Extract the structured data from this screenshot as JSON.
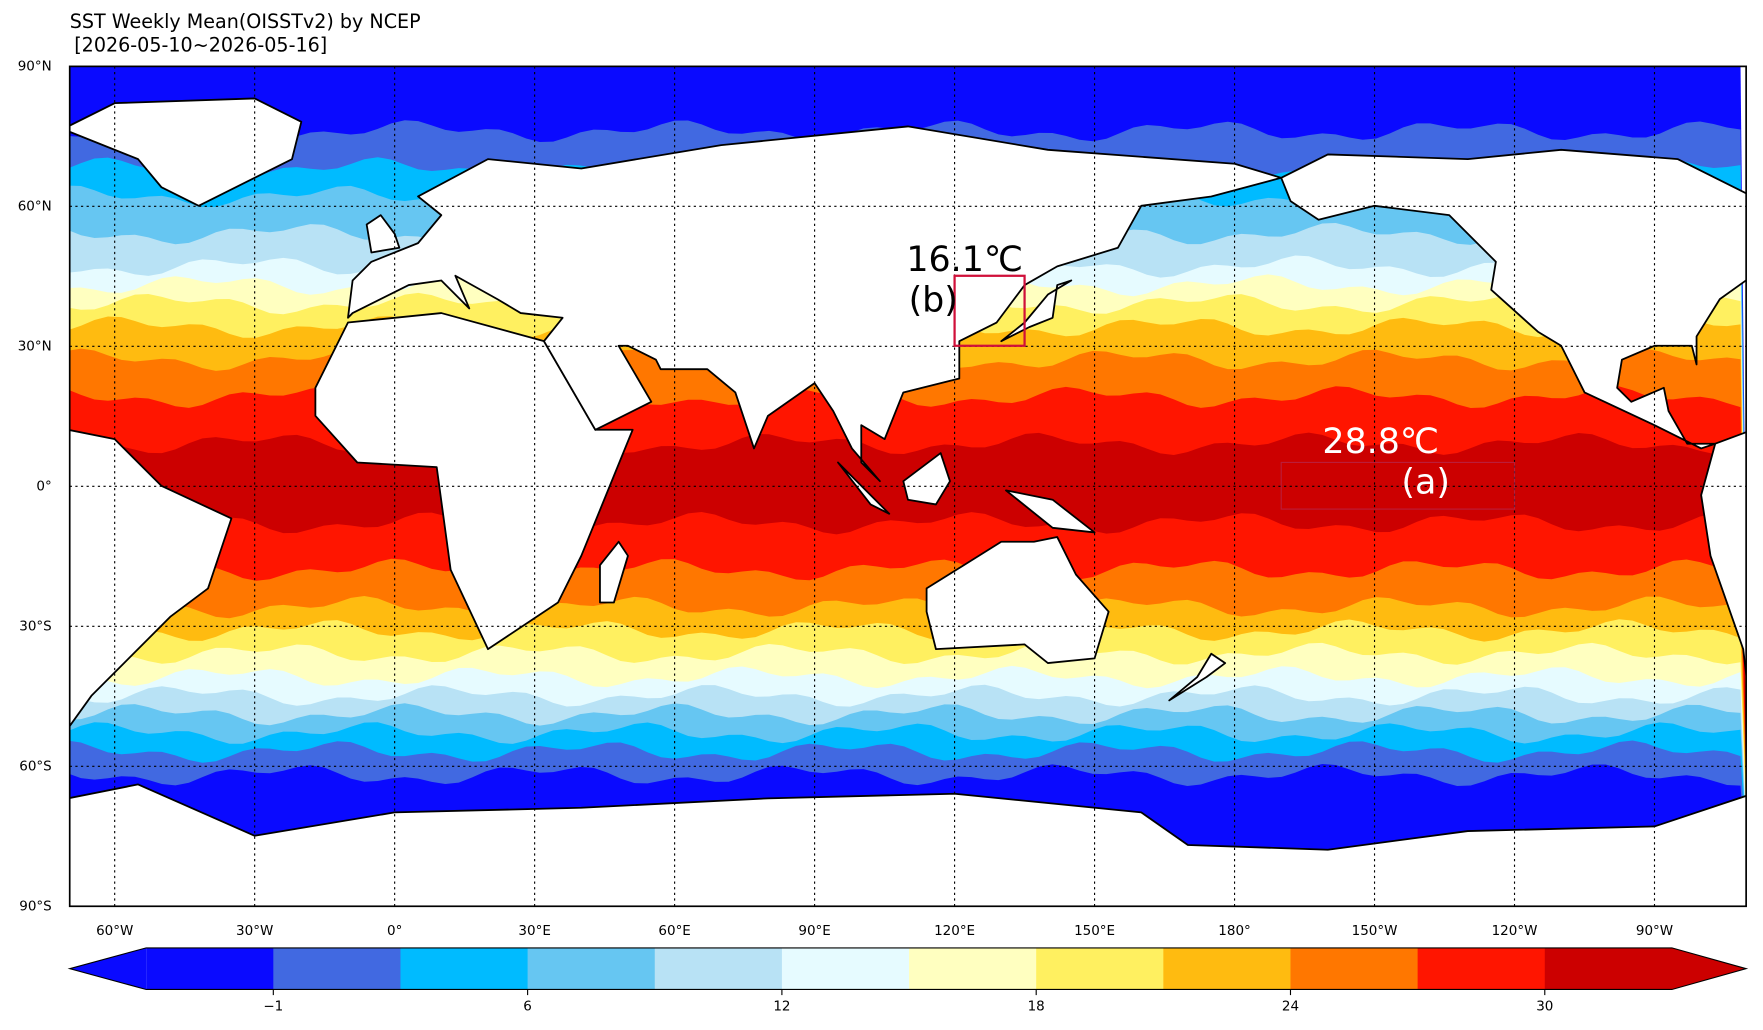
{
  "title": "SST Weekly Mean(OISSTv2) by NCEP",
  "subtitle": "[2026-05-10~2026-05-16]",
  "map": {
    "lat_labels": [
      "90°N",
      "60°N",
      "30°N",
      "0°",
      "30°S",
      "60°S",
      "90°S"
    ],
    "lon_labels": [
      "60°W",
      "30°W",
      "0°",
      "30°E",
      "60°E",
      "90°E",
      "120°E",
      "150°E",
      "180°",
      "150°W",
      "120°W",
      "90°W"
    ],
    "annotations": [
      {
        "value": "16.1℃",
        "label": "(b)",
        "color": "#000000"
      },
      {
        "value": "28.8℃",
        "label": "(a)",
        "color": "#ffffff"
      }
    ]
  },
  "colorbar": {
    "colors": [
      "#0a0aff",
      "#4169e1",
      "#00bbff",
      "#66c6f2",
      "#b8e2f5",
      "#e6fbff",
      "#ffffc0",
      "#fff060",
      "#ffbb10",
      "#ff7700",
      "#ff1500",
      "#cc0000"
    ],
    "ticks": [
      "−1",
      "6",
      "12",
      "18",
      "24",
      "30"
    ]
  }
}
